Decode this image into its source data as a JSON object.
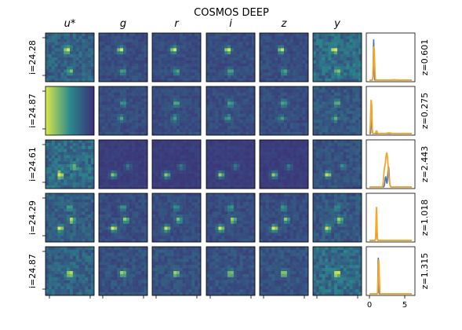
{
  "title": "COSMOS DEEP",
  "colors": {
    "img_low": "#3d2e78",
    "img_mid": "#2a8a8c",
    "img_high": "#dce84a",
    "pdf_main": "#f5a623",
    "pdf_alt": "#4a73b8",
    "border": "#000000"
  },
  "bands": [
    "u*",
    "g",
    "r",
    "i",
    "z",
    "y"
  ],
  "chart_data": {
    "type": "image-grid-with-pdf",
    "title": "COSMOS DEEP",
    "columns": [
      "u*",
      "g",
      "r",
      "i",
      "z",
      "y"
    ],
    "rows": [
      {
        "mag_label": "i=24.28",
        "z_label": "z=0.601",
        "u_missing": false,
        "sources": [
          [
            0.45,
            0.35,
            1.0
          ],
          [
            0.5,
            0.8,
            0.6
          ]
        ],
        "noise": [
          0.5,
          0.3,
          0.3,
          0.3,
          0.3,
          0.6
        ],
        "pdf": {
          "main_peaks": [
            [
              0.65,
              0.08,
              1.0
            ],
            [
              3.5,
              0.5,
              0.01
            ]
          ],
          "alt_peaks": [
            [
              0.6,
              0.05,
              1.2
            ]
          ]
        }
      },
      {
        "mag_label": "i=24.87",
        "z_label": "z=0.275",
        "u_missing": true,
        "sources": [
          [
            0.5,
            0.35,
            0.6
          ],
          [
            0.45,
            0.65,
            0.5
          ]
        ],
        "noise": [
          0.5,
          0.3,
          0.3,
          0.3,
          0.3,
          0.4
        ],
        "pdf": {
          "main_peaks": [
            [
              0.25,
              0.08,
              1.0
            ],
            [
              1.0,
              0.1,
              0.08
            ],
            [
              2.8,
              0.3,
              0.02
            ]
          ],
          "alt_peaks": [
            [
              0.3,
              0.05,
              0.9
            ]
          ]
        }
      },
      {
        "mag_label": "i=24.61",
        "z_label": "z=2.443",
        "u_missing": false,
        "sources": [
          [
            0.3,
            0.72,
            0.9
          ],
          [
            0.6,
            0.55,
            0.4
          ]
        ],
        "noise": [
          0.6,
          0.15,
          0.15,
          0.15,
          0.15,
          0.35
        ],
        "pdf": {
          "main_peaks": [
            [
              2.45,
              0.2,
              1.0
            ],
            [
              2.1,
              0.1,
              0.3
            ]
          ],
          "alt_peaks": [
            [
              2.7,
              0.1,
              0.6
            ],
            [
              2.3,
              0.1,
              0.3
            ]
          ]
        }
      },
      {
        "mag_label": "i=24.29",
        "z_label": "z=1.018",
        "u_missing": false,
        "sources": [
          [
            0.3,
            0.72,
            1.0
          ],
          [
            0.55,
            0.55,
            0.8
          ],
          [
            0.5,
            0.3,
            0.5
          ]
        ],
        "noise": [
          0.45,
          0.3,
          0.3,
          0.3,
          0.3,
          0.4
        ],
        "pdf": {
          "main_peaks": [
            [
              1.0,
              0.06,
              1.0
            ]
          ],
          "alt_peaks": [
            [
              1.0,
              0.05,
              0.9
            ]
          ]
        }
      },
      {
        "mag_label": "i=24.87",
        "z_label": "z=1.315",
        "u_missing": false,
        "sources": [
          [
            0.5,
            0.55,
            0.9
          ]
        ],
        "noise": [
          0.5,
          0.35,
          0.35,
          0.35,
          0.35,
          0.6
        ],
        "pdf": {
          "main_peaks": [
            [
              1.32,
              0.07,
              1.0
            ]
          ],
          "alt_peaks": [
            [
              1.25,
              0.04,
              1.1
            ]
          ]
        }
      }
    ],
    "pdf_xlim": [
      0,
      6
    ],
    "pdf_xticks": [
      "0",
      "5"
    ],
    "pdf_tick_values": [
      0,
      5
    ]
  }
}
